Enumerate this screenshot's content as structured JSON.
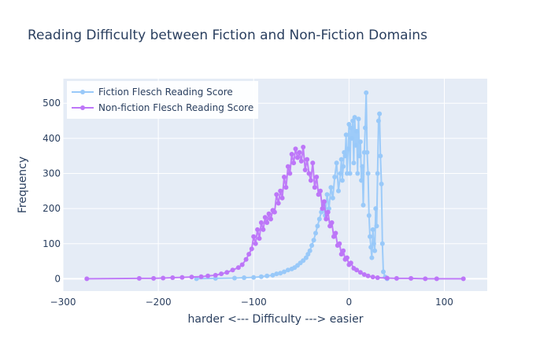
{
  "chart_data": {
    "type": "line",
    "title": "Reading Difficulty between Fiction and Non-Fiction Domains",
    "xlabel": "harder <--- Difficulty ---> easier",
    "ylabel": "Frequency",
    "xlim": [
      -300,
      145
    ],
    "ylim": [
      -35,
      570
    ],
    "x_ticks": [
      "−300",
      "−200",
      "−100",
      "0",
      "100"
    ],
    "y_ticks": [
      "0",
      "100",
      "200",
      "300",
      "400",
      "500"
    ],
    "grid": true,
    "legend_position": "top-left",
    "series": [
      {
        "name": "Fiction Flesch Reading Score",
        "color": "#99c9f9",
        "points": [
          [
            -160,
            0
          ],
          [
            -140,
            1
          ],
          [
            -120,
            2
          ],
          [
            -110,
            3
          ],
          [
            -100,
            4
          ],
          [
            -92,
            6
          ],
          [
            -86,
            8
          ],
          [
            -80,
            10
          ],
          [
            -76,
            14
          ],
          [
            -72,
            16
          ],
          [
            -68,
            20
          ],
          [
            -64,
            25
          ],
          [
            -60,
            28
          ],
          [
            -57,
            32
          ],
          [
            -54,
            38
          ],
          [
            -51,
            45
          ],
          [
            -48,
            52
          ],
          [
            -45,
            60
          ],
          [
            -43,
            70
          ],
          [
            -41,
            80
          ],
          [
            -39,
            95
          ],
          [
            -37,
            110
          ],
          [
            -35,
            130
          ],
          [
            -33,
            150
          ],
          [
            -31,
            170
          ],
          [
            -29,
            190
          ],
          [
            -27,
            210
          ],
          [
            -25,
            180
          ],
          [
            -23,
            240
          ],
          [
            -21,
            200
          ],
          [
            -19,
            260
          ],
          [
            -17,
            230
          ],
          [
            -15,
            290
          ],
          [
            -13,
            330
          ],
          [
            -11,
            250
          ],
          [
            -9,
            300
          ],
          [
            -8,
            340
          ],
          [
            -7,
            280
          ],
          [
            -6,
            320
          ],
          [
            -5,
            360
          ],
          [
            -4,
            350
          ],
          [
            -3,
            410
          ],
          [
            -2,
            300
          ],
          [
            -1,
            370
          ],
          [
            0,
            440
          ],
          [
            1,
            300
          ],
          [
            2,
            430
          ],
          [
            3,
            400
          ],
          [
            4,
            450
          ],
          [
            5,
            330
          ],
          [
            6,
            460
          ],
          [
            7,
            380
          ],
          [
            8,
            420
          ],
          [
            9,
            300
          ],
          [
            10,
            455
          ],
          [
            11,
            350
          ],
          [
            12,
            390
          ],
          [
            13,
            280
          ],
          [
            14,
            320
          ],
          [
            15,
            210
          ],
          [
            16,
            360
          ],
          [
            17,
            430
          ],
          [
            18,
            530
          ],
          [
            19,
            360
          ],
          [
            20,
            300
          ],
          [
            21,
            180
          ],
          [
            22,
            120
          ],
          [
            23,
            90
          ],
          [
            24,
            60
          ],
          [
            25,
            140
          ],
          [
            26,
            100
          ],
          [
            27,
            80
          ],
          [
            28,
            200
          ],
          [
            29,
            150
          ],
          [
            30,
            300
          ],
          [
            31,
            450
          ],
          [
            32,
            470
          ],
          [
            33,
            350
          ],
          [
            34,
            270
          ],
          [
            35,
            100
          ],
          [
            36,
            20
          ],
          [
            38,
            5
          ],
          [
            40,
            0
          ]
        ]
      },
      {
        "name": "Non-fiction Flesch Reading Score",
        "color": "#bd76f8",
        "points": [
          [
            -275,
            0
          ],
          [
            -220,
            1
          ],
          [
            -205,
            1
          ],
          [
            -195,
            2
          ],
          [
            -185,
            3
          ],
          [
            -175,
            4
          ],
          [
            -165,
            5
          ],
          [
            -155,
            6
          ],
          [
            -148,
            8
          ],
          [
            -140,
            10
          ],
          [
            -134,
            14
          ],
          [
            -128,
            18
          ],
          [
            -122,
            25
          ],
          [
            -116,
            32
          ],
          [
            -112,
            40
          ],
          [
            -108,
            55
          ],
          [
            -105,
            70
          ],
          [
            -102,
            85
          ],
          [
            -100,
            120
          ],
          [
            -98,
            100
          ],
          [
            -96,
            140
          ],
          [
            -94,
            115
          ],
          [
            -92,
            160
          ],
          [
            -90,
            140
          ],
          [
            -88,
            175
          ],
          [
            -86,
            160
          ],
          [
            -84,
            185
          ],
          [
            -82,
            170
          ],
          [
            -80,
            195
          ],
          [
            -78,
            190
          ],
          [
            -76,
            240
          ],
          [
            -74,
            215
          ],
          [
            -72,
            250
          ],
          [
            -70,
            230
          ],
          [
            -68,
            290
          ],
          [
            -66,
            260
          ],
          [
            -64,
            320
          ],
          [
            -62,
            300
          ],
          [
            -60,
            355
          ],
          [
            -58,
            330
          ],
          [
            -56,
            370
          ],
          [
            -54,
            345
          ],
          [
            -52,
            360
          ],
          [
            -50,
            335
          ],
          [
            -48,
            375
          ],
          [
            -46,
            310
          ],
          [
            -44,
            340
          ],
          [
            -42,
            300
          ],
          [
            -40,
            280
          ],
          [
            -38,
            330
          ],
          [
            -36,
            260
          ],
          [
            -34,
            290
          ],
          [
            -32,
            240
          ],
          [
            -30,
            250
          ],
          [
            -28,
            200
          ],
          [
            -26,
            220
          ],
          [
            -24,
            170
          ],
          [
            -22,
            190
          ],
          [
            -20,
            150
          ],
          [
            -18,
            160
          ],
          [
            -16,
            120
          ],
          [
            -14,
            130
          ],
          [
            -12,
            95
          ],
          [
            -10,
            100
          ],
          [
            -8,
            70
          ],
          [
            -6,
            80
          ],
          [
            -4,
            55
          ],
          [
            -2,
            60
          ],
          [
            0,
            40
          ],
          [
            2,
            45
          ],
          [
            5,
            30
          ],
          [
            8,
            25
          ],
          [
            12,
            18
          ],
          [
            16,
            12
          ],
          [
            20,
            8
          ],
          [
            25,
            5
          ],
          [
            30,
            3
          ],
          [
            40,
            2
          ],
          [
            50,
            1
          ],
          [
            65,
            1
          ],
          [
            80,
            0
          ],
          [
            92,
            0
          ],
          [
            120,
            0
          ]
        ]
      }
    ]
  }
}
